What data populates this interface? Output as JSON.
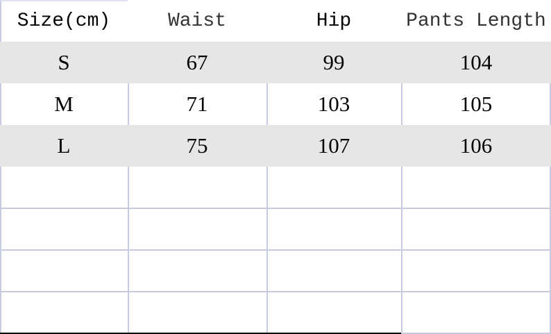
{
  "table": {
    "headers": [
      "Size(cm)",
      "Waist",
      "Hip",
      "Pants Length"
    ],
    "rows": [
      [
        "S",
        "67",
        "99",
        "104"
      ],
      [
        "M",
        "71",
        "103",
        "105"
      ],
      [
        "L",
        "75",
        "107",
        "106"
      ]
    ],
    "empty_rows": 4,
    "colors": {
      "shaded_row": "#e6e6e6",
      "grid_line": "#c6cbdf"
    }
  }
}
